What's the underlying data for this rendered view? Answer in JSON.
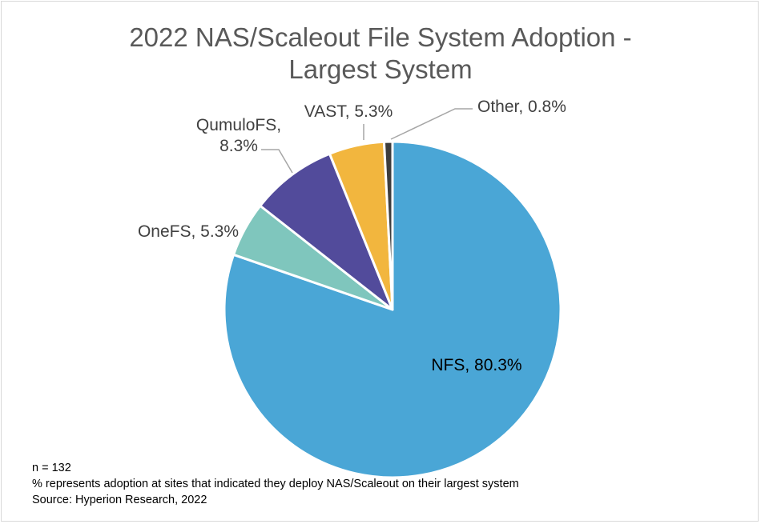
{
  "chart_data": {
    "type": "pie",
    "title": "2022 NAS/Scaleout File System Adoption - Largest System",
    "title_lines": [
      "2022 NAS/Scaleout File System Adoption -",
      "Largest System"
    ],
    "slices": [
      {
        "name": "NFS",
        "value": 80.3,
        "label_lines": [
          "NFS, 80.3%"
        ],
        "color": "#4aa6d6"
      },
      {
        "name": "OneFS",
        "value": 5.3,
        "label_lines": [
          "OneFS, 5.3%"
        ],
        "color": "#7fc6bd"
      },
      {
        "name": "QumuloFS",
        "value": 8.3,
        "label_lines": [
          "QumuloFS,",
          "8.3%"
        ],
        "color": "#524b9b"
      },
      {
        "name": "VAST",
        "value": 5.3,
        "label_lines": [
          "VAST, 5.3%"
        ],
        "color": "#f2b63e"
      },
      {
        "name": "Other",
        "value": 0.8,
        "label_lines": [
          "Other, 0.8%"
        ],
        "color": "#3d3d3d"
      }
    ],
    "start": "12 o'clock, clockwise",
    "legend": "none"
  },
  "notes": {
    "n": "n = 132",
    "description": "% represents adoption at sites that indicated they deploy NAS/Scaleout on their largest system",
    "source": "Source: Hyperion Research, 2022"
  }
}
